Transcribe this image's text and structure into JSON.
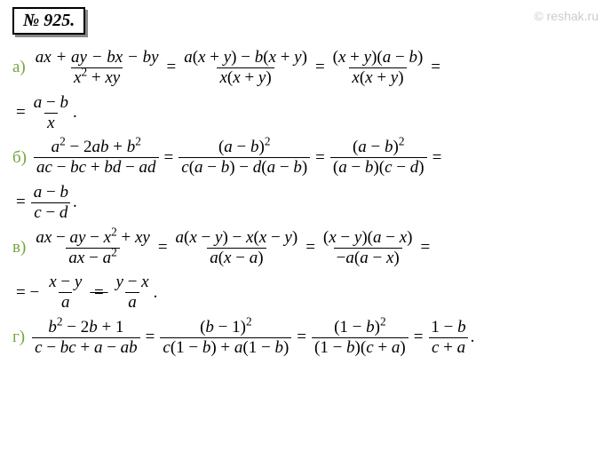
{
  "badge": "№ 925.",
  "watermark": "© reshak.ru",
  "font": {
    "family": "Times New Roman",
    "size_pt": 19,
    "label_color": "#74a53f"
  },
  "problems": [
    {
      "label": "а)",
      "steps": [
        {
          "num": "ax + ay − bx − by",
          "den": "x² + xy"
        },
        {
          "num": "a(x + y) − b(x + y)",
          "den": "x(x + y)"
        },
        {
          "num": "(x + y)(a − b)",
          "den": "x(x + y)"
        }
      ],
      "cont": {
        "prefix": "=",
        "num": "a − b",
        "den": "x",
        "suffix": "."
      }
    },
    {
      "label": "б)",
      "steps": [
        {
          "num": "a² − 2ab + b²",
          "den": "ac − bc + bd − ad"
        },
        {
          "num": "(a − b)²",
          "den": "c(a − b) − d(a − b)"
        },
        {
          "num": "(a − b)²",
          "den": "(a − b)(c − d)"
        }
      ],
      "cont": {
        "prefix": "=",
        "num": "a − b",
        "den": "c − d",
        "suffix": "."
      }
    },
    {
      "label": "в)",
      "steps": [
        {
          "num": "ax − ay − x² + xy",
          "den": "ax − a²"
        },
        {
          "num": "a(x − y) − x(x − y)",
          "den": "a(x − a)"
        },
        {
          "num": "(x − y)(a − x)",
          "den": "−a(a − x)"
        }
      ],
      "cont2": {
        "prefix": "= −",
        "f1": {
          "num": "x − y",
          "den": "a"
        },
        "mid": " = ",
        "f2": {
          "num": "y − x",
          "den": "a"
        },
        "suffix": "."
      }
    },
    {
      "label": "г)",
      "steps": [
        {
          "num": "b² − 2b + 1",
          "den": "c − bc + a − ab"
        },
        {
          "num": "(b − 1)²",
          "den": "c(1 − b) + a(1 − b)"
        },
        {
          "num": "(1 − b)²",
          "den": "(1 − b)(c + a)"
        },
        {
          "num": "1 − b",
          "den": "c + a"
        }
      ],
      "suffix": "."
    }
  ]
}
